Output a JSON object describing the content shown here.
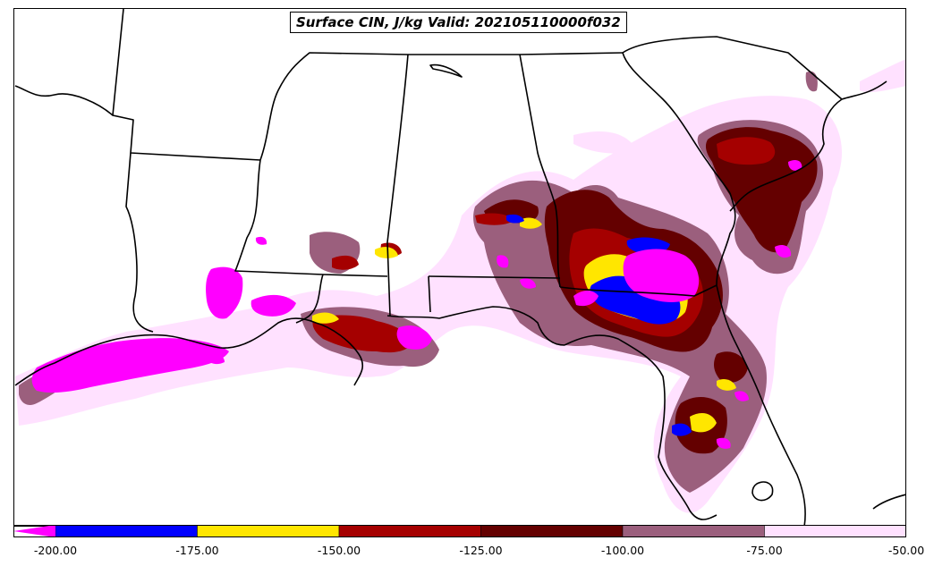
{
  "map": {
    "title": "Surface CIN, J/kg Valid: 202105110000f032",
    "background_color": "#ffffff",
    "boundary_color": "#000000",
    "field": "Surface CIN",
    "units": "J/kg",
    "valid": "202105110000f032"
  },
  "colorbar": {
    "extend": "min",
    "ticks": [
      "-200.00",
      "-175.00",
      "-150.00",
      "-125.00",
      "-100.00",
      "-75.00",
      "-50.00"
    ],
    "bins": [
      {
        "from": -200,
        "to": -175,
        "color": "#0000ff"
      },
      {
        "from": -175,
        "to": -150,
        "color": "#ffe600"
      },
      {
        "from": -150,
        "to": -125,
        "color": "#a50000"
      },
      {
        "from": -125,
        "to": -100,
        "color": "#640000"
      },
      {
        "from": -100,
        "to": -75,
        "color": "#9b5f7d"
      },
      {
        "from": -75,
        "to": -50,
        "color": "#ffe1ff"
      }
    ],
    "under_color": "#ff00ff"
  }
}
